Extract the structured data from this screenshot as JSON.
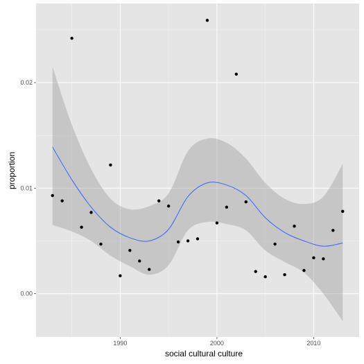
{
  "chart_data": {
    "type": "scatter",
    "xlabel": "social cultural culture",
    "ylabel": "proportion",
    "xlim": [
      1981.3,
      2014.7
    ],
    "ylim": [
      -0.0041,
      0.0275
    ],
    "x_ticks": [
      1990,
      2000,
      2010
    ],
    "x_tick_labels": [
      "1990",
      "2000",
      "2010"
    ],
    "y_ticks": [
      0.0,
      0.01,
      0.02
    ],
    "y_tick_labels": [
      "0.00",
      "0.01",
      "0.02"
    ],
    "grid": true,
    "legend": "none",
    "points": {
      "x": [
        1983,
        1984,
        1985,
        1986,
        1987,
        1988,
        1989,
        1990,
        1991,
        1992,
        1993,
        1994,
        1995,
        1996,
        1997,
        1998,
        1999,
        2000,
        2001,
        2002,
        2003,
        2004,
        2005,
        2006,
        2007,
        2008,
        2009,
        2010,
        2011,
        2012,
        2013
      ],
      "y": [
        0.0093,
        0.0088,
        0.0242,
        0.0063,
        0.0077,
        0.0047,
        0.0122,
        0.0017,
        0.0041,
        0.0031,
        0.0023,
        0.0088,
        0.0083,
        0.0049,
        0.005,
        0.0052,
        0.0259,
        0.0067,
        0.0082,
        0.0208,
        0.0087,
        0.0021,
        0.0016,
        0.0047,
        0.0018,
        0.0064,
        0.0022,
        0.0034,
        0.0033,
        0.006,
        0.0078
      ]
    },
    "smooth": {
      "x": [
        1983,
        1985,
        1987,
        1989,
        1991,
        1993,
        1995,
        1997,
        1999,
        2001,
        2003,
        2005,
        2007,
        2009,
        2011,
        2013
      ],
      "y": [
        0.0139,
        0.0108,
        0.0082,
        0.0063,
        0.0053,
        0.005,
        0.0061,
        0.0092,
        0.0105,
        0.0103,
        0.0093,
        0.0072,
        0.0058,
        0.005,
        0.0045,
        0.0048
      ],
      "upper": [
        0.0215,
        0.016,
        0.0118,
        0.009,
        0.008,
        0.0083,
        0.0095,
        0.0135,
        0.0147,
        0.0143,
        0.0128,
        0.0105,
        0.009,
        0.0085,
        0.0092,
        0.0123
      ],
      "lower": [
        0.0065,
        0.0059,
        0.005,
        0.0036,
        0.0026,
        0.0018,
        0.0027,
        0.006,
        0.0068,
        0.0066,
        0.006,
        0.0041,
        0.003,
        0.002,
        0.0,
        -0.0026
      ]
    },
    "colors": {
      "panel": "#e5e5e5",
      "grid_major": "#ffffff",
      "grid_minor": "#f2f2f2",
      "ribbon": "#999999",
      "ribbon_opacity": 0.4,
      "line": "#3366ff",
      "point": "#000000"
    }
  }
}
